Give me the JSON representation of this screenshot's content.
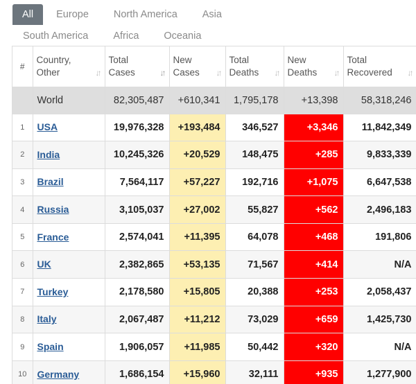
{
  "tabs_row1": [
    "All",
    "Europe",
    "North America",
    "Asia"
  ],
  "tabs_row2": [
    "South America",
    "Africa",
    "Oceania"
  ],
  "headers": {
    "num": "#",
    "country_l1": "Country,",
    "country_l2": "Other",
    "total_cases_l1": "Total",
    "total_cases_l2": "Cases",
    "new_cases_l1": "New",
    "new_cases_l2": "Cases",
    "total_deaths_l1": "Total",
    "total_deaths_l2": "Deaths",
    "new_deaths_l1": "New",
    "new_deaths_l2": "Deaths",
    "total_recovered_l1": "Total",
    "total_recovered_l2": "Recovered"
  },
  "world": {
    "name": "World",
    "total_cases": "82,305,487",
    "new_cases": "+610,341",
    "total_deaths": "1,795,178",
    "new_deaths": "+13,398",
    "total_recovered": "58,318,246"
  },
  "rows": [
    {
      "idx": "1",
      "country": "USA",
      "total_cases": "19,976,328",
      "new_cases": "+193,484",
      "total_deaths": "346,527",
      "new_deaths": "+3,346",
      "total_recovered": "11,842,349"
    },
    {
      "idx": "2",
      "country": "India",
      "total_cases": "10,245,326",
      "new_cases": "+20,529",
      "total_deaths": "148,475",
      "new_deaths": "+285",
      "total_recovered": "9,833,339"
    },
    {
      "idx": "3",
      "country": "Brazil",
      "total_cases": "7,564,117",
      "new_cases": "+57,227",
      "total_deaths": "192,716",
      "new_deaths": "+1,075",
      "total_recovered": "6,647,538"
    },
    {
      "idx": "4",
      "country": "Russia",
      "total_cases": "3,105,037",
      "new_cases": "+27,002",
      "total_deaths": "55,827",
      "new_deaths": "+562",
      "total_recovered": "2,496,183"
    },
    {
      "idx": "5",
      "country": "France",
      "total_cases": "2,574,041",
      "new_cases": "+11,395",
      "total_deaths": "64,078",
      "new_deaths": "+468",
      "total_recovered": "191,806"
    },
    {
      "idx": "6",
      "country": "UK",
      "total_cases": "2,382,865",
      "new_cases": "+53,135",
      "total_deaths": "71,567",
      "new_deaths": "+414",
      "total_recovered": "N/A"
    },
    {
      "idx": "7",
      "country": "Turkey",
      "total_cases": "2,178,580",
      "new_cases": "+15,805",
      "total_deaths": "20,388",
      "new_deaths": "+253",
      "total_recovered": "2,058,437"
    },
    {
      "idx": "8",
      "country": "Italy",
      "total_cases": "2,067,487",
      "new_cases": "+11,212",
      "total_deaths": "73,029",
      "new_deaths": "+659",
      "total_recovered": "1,425,730"
    },
    {
      "idx": "9",
      "country": "Spain",
      "total_cases": "1,906,057",
      "new_cases": "+11,985",
      "total_deaths": "50,442",
      "new_deaths": "+320",
      "total_recovered": "N/A"
    },
    {
      "idx": "10",
      "country": "Germany",
      "total_cases": "1,686,154",
      "new_cases": "+15,960",
      "total_deaths": "32,111",
      "new_deaths": "+935",
      "total_recovered": "1,277,900"
    }
  ],
  "colors": {
    "active_tab": "#6c757d",
    "new_cases_bg": "#fdefb2",
    "new_deaths_bg": "#ff0000",
    "world_row_bg": "#dedede",
    "link": "#2a5c96"
  }
}
